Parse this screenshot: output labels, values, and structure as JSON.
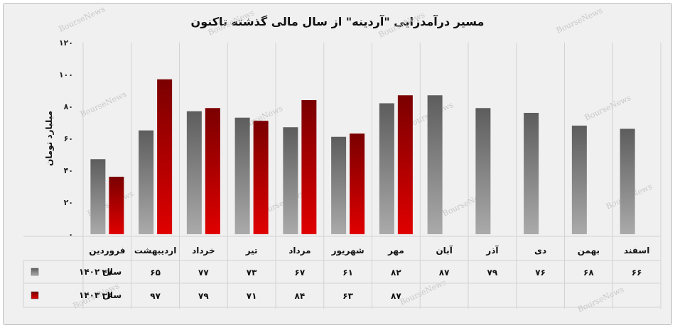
{
  "chart_data": {
    "type": "bar",
    "title": "مسیر درآمدزایی \"آردینه\" از سال مالی گذشته تاکنون",
    "ylabel": "میلیارد تومان",
    "ylim": [
      0,
      120
    ],
    "yticks": [
      "۰",
      "۲۰",
      "۴۰",
      "۶۰",
      "۸۰",
      "۱۰۰",
      "۱۲۰"
    ],
    "grid": "vertical category separators",
    "legend": "data table rows (left side)",
    "watermark": "BourseNews",
    "categories": [
      "فروردین",
      "اردیبهشت",
      "خرداد",
      "تیر",
      "مرداد",
      "شهریور",
      "مهر",
      "آبان",
      "آذر",
      "دی",
      "بهمن",
      "اسفند"
    ],
    "series": [
      {
        "name": "سال ۱۴۰۲",
        "color": "#7a7a7a",
        "values": [
          47,
          65,
          77,
          73,
          67,
          61,
          82,
          87,
          79,
          76,
          68,
          66
        ],
        "labels": [
          "۴۷",
          "۶۵",
          "۷۷",
          "۷۳",
          "۶۷",
          "۶۱",
          "۸۲",
          "۸۷",
          "۷۹",
          "۷۶",
          "۶۸",
          "۶۶"
        ]
      },
      {
        "name": "سال ۱۴۰۳",
        "color": "#c00000",
        "values": [
          36,
          97,
          79,
          71,
          84,
          63,
          87,
          null,
          null,
          null,
          null,
          null
        ],
        "labels": [
          "۳۶",
          "۹۷",
          "۷۹",
          "۷۱",
          "۸۴",
          "۶۳",
          "۸۷",
          "",
          "",
          "",
          "",
          ""
        ]
      }
    ]
  }
}
